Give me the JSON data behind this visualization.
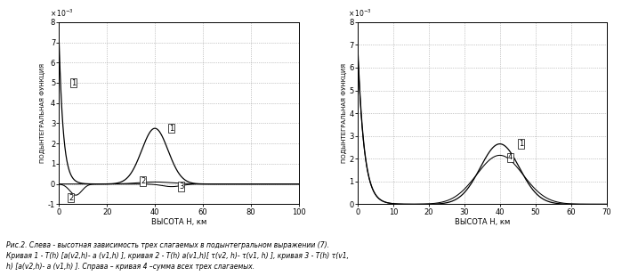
{
  "left_ylim": [
    -0.001,
    0.008
  ],
  "left_xlim": [
    0,
    100
  ],
  "right_ylim": [
    0,
    0.008
  ],
  "right_xlim": [
    0,
    70
  ],
  "ylabel": "ПОДЫНТЕГРАЛЬНАЯ ФУНКЦИЯ",
  "xlabel": "ВЫСОТА H, км",
  "yticks_left": [
    -0.001,
    0,
    0.001,
    0.002,
    0.003,
    0.004,
    0.005,
    0.006,
    0.007,
    0.008
  ],
  "yticks_right": [
    0,
    0.001,
    0.002,
    0.003,
    0.004,
    0.005,
    0.006,
    0.007,
    0.008
  ],
  "xticks_left": [
    0,
    20,
    40,
    60,
    80,
    100
  ],
  "xticks_right": [
    0,
    10,
    20,
    30,
    40,
    50,
    60,
    70
  ],
  "line_color": "#000000",
  "caption": "Рис.2. Слева - высотная зависимость трех слагаемых в подынтегральном выражении (7).\nКривая 1 - T(h) [a(v2,h)- a (v1,h) ], кривая 2 - T(h) a(v1,h)[ τ(v2, h)- τ(v1, h) ], кривая 3 - T(h) τ(v1,\nh) [a(v2,h)- a (v1,h) ]. Справа – кривая 4 –сумма всех трех слагаемых."
}
